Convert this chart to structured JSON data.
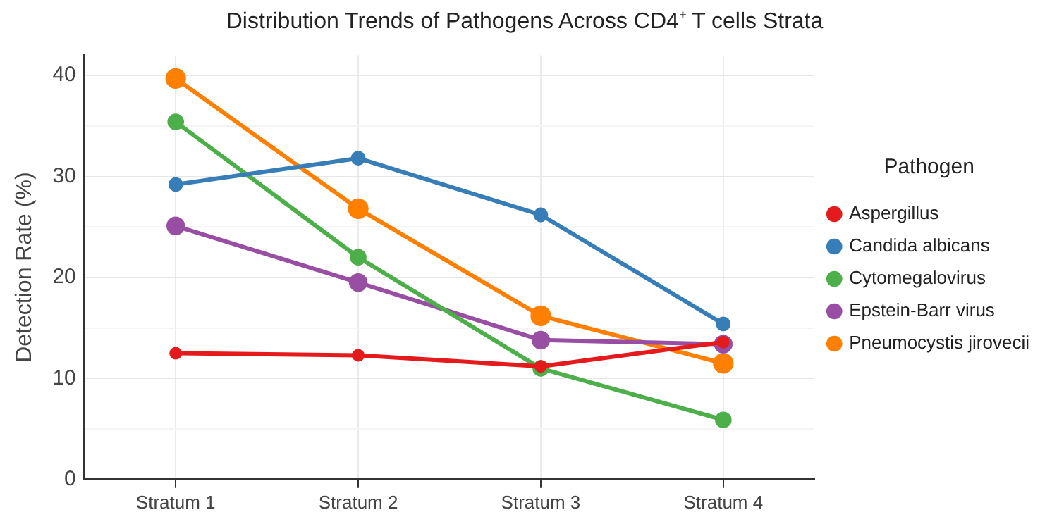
{
  "chart_data": {
    "type": "line",
    "title": "Distribution Trends of Pathogens Across CD4⁺ T cells Strata",
    "ylabel": "Detection Rate (%)",
    "legend_title": "Pathogen",
    "categories": [
      "Stratum 1",
      "Stratum 2",
      "Stratum 3",
      "Stratum 4"
    ],
    "series": [
      {
        "name": "Aspergillus",
        "color": "#e41a1c",
        "values": [
          12.5,
          12.3,
          11.2,
          13.6
        ]
      },
      {
        "name": "Candida albicans",
        "color": "#377eb8",
        "values": [
          29.2,
          31.8,
          26.2,
          15.4
        ]
      },
      {
        "name": "Cytomegalovirus",
        "color": "#4daf4a",
        "values": [
          35.4,
          22.0,
          11.0,
          5.9
        ]
      },
      {
        "name": "Epstein-Barr virus",
        "color": "#984ea3",
        "values": [
          25.1,
          19.5,
          13.8,
          13.4
        ]
      },
      {
        "name": "Pneumocystis jirovecii",
        "color": "#ff7f00",
        "values": [
          39.7,
          26.8,
          16.2,
          11.5
        ]
      }
    ],
    "ylim": [
      0,
      42
    ],
    "yticks": [
      0,
      {
        "value": 5,
        "label": null
      },
      10,
      {
        "value": 15,
        "label": null
      },
      20,
      {
        "value": 25,
        "label": null
      },
      30,
      {
        "value": 35,
        "label": null
      },
      40
    ],
    "grid": true,
    "legend": "right",
    "marker": "circle",
    "line_style": "solid"
  }
}
